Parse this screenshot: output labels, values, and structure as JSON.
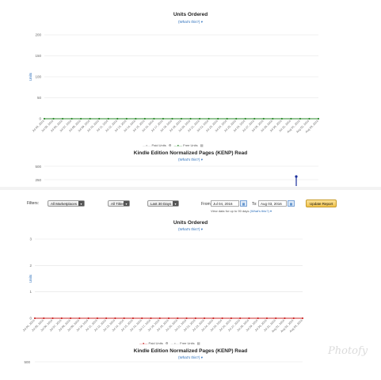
{
  "top": {
    "units_title": "Units Ordered",
    "whats_this": "(What's this?)",
    "legend": {
      "paid": "Paid Units",
      "free": "Free Units"
    },
    "kenp_title": "Kindle Edition Normalized Pages (KENP) Read",
    "kenp_whats_this": "(What's this?)",
    "kenp_ticks": [
      "500",
      "250"
    ]
  },
  "filters": {
    "label": "Filters:",
    "marketplace": "All Marketplaces",
    "titles": "All Titles",
    "range": "Last 30 Days",
    "from_label": "From:",
    "from_value": "Jul 04, 2016",
    "to_label": "To:",
    "to_value": "Aug 03, 2016",
    "update": "Update Report",
    "hint": "View data for up to 90 days",
    "hint_link": "(What's this?)"
  },
  "bottom": {
    "units_title": "Units Ordered",
    "whats_this": "(What's this?)",
    "legend": {
      "paid": "Paid Units",
      "free": "Free Units"
    },
    "kenp_title": "Kindle Edition Normalized Pages (KENP) Read",
    "kenp_whats_this": "(What's this?)",
    "kenp_tick": "500"
  },
  "watermark": "Photofy",
  "chart_data": [
    {
      "type": "line",
      "title": "Units Ordered",
      "ylabel": "Units",
      "ylim": [
        0,
        200
      ],
      "yticks": [
        0,
        50,
        100,
        150,
        200
      ],
      "categories": [
        "Jul 04, 2016",
        "Jul 05, 2016",
        "Jul 06, 2016",
        "Jul 07, 2016",
        "Jul 08, 2016",
        "Jul 09, 2016",
        "Jul 10, 2016",
        "Jul 11, 2016",
        "Jul 12, 2016",
        "Jul 13, 2016",
        "Jul 14, 2016",
        "Jul 15, 2016",
        "Jul 16, 2016",
        "Jul 17, 2016",
        "Jul 18, 2016",
        "Jul 19, 2016",
        "Jul 20, 2016",
        "Jul 21, 2016",
        "Jul 22, 2016",
        "Jul 23, 2016",
        "Jul 24, 2016",
        "Jul 25, 2016",
        "Jul 26, 2016",
        "Jul 27, 2016",
        "Jul 28, 2016",
        "Jul 29, 2016",
        "Jul 30, 2016",
        "Jul 31, 2016",
        "Aug 01, 2016",
        "Aug 02, 2016",
        "Aug 03, 2016"
      ],
      "series": [
        {
          "name": "Free Units",
          "color": "#2e8b2e",
          "values": [
            0,
            0,
            0,
            0,
            0,
            0,
            0,
            0,
            0,
            0,
            0,
            0,
            0,
            0,
            0,
            0,
            0,
            0,
            0,
            0,
            0,
            0,
            0,
            0,
            0,
            0,
            0,
            0,
            0,
            0,
            0
          ]
        },
        {
          "name": "Paid Units",
          "color": "#bbbbbb",
          "values": [
            0,
            0,
            0,
            0,
            0,
            0,
            0,
            0,
            0,
            0,
            0,
            0,
            0,
            0,
            0,
            0,
            0,
            0,
            0,
            0,
            0,
            0,
            0,
            0,
            0,
            0,
            0,
            0,
            0,
            0,
            0
          ]
        }
      ],
      "grid": true,
      "legend_position": "bottom"
    },
    {
      "type": "line",
      "title": "Units Ordered",
      "ylabel": "Units",
      "ylim": [
        0,
        3
      ],
      "yticks": [
        0,
        1,
        2,
        3
      ],
      "categories": [
        "Jul 04, 2016",
        "Jul 05, 2016",
        "Jul 06, 2016",
        "Jul 07, 2016",
        "Jul 08, 2016",
        "Jul 09, 2016",
        "Jul 10, 2016",
        "Jul 11, 2016",
        "Jul 12, 2016",
        "Jul 13, 2016",
        "Jul 14, 2016",
        "Jul 15, 2016",
        "Jul 16, 2016",
        "Jul 17, 2016",
        "Jul 18, 2016",
        "Jul 19, 2016",
        "Jul 20, 2016",
        "Jul 21, 2016",
        "Jul 22, 2016",
        "Jul 23, 2016",
        "Jul 24, 2016",
        "Jul 25, 2016",
        "Jul 26, 2016",
        "Jul 27, 2016",
        "Jul 28, 2016",
        "Jul 29, 2016",
        "Jul 30, 2016",
        "Jul 31, 2016",
        "Aug 01, 2016",
        "Aug 02, 2016",
        "Aug 03, 2016"
      ],
      "series": [
        {
          "name": "Paid Units",
          "color": "#cc2b2b",
          "values": [
            0,
            0,
            0,
            0,
            0,
            0,
            0,
            0,
            0,
            0,
            0,
            0,
            0,
            0,
            0,
            0,
            0,
            0,
            0,
            0,
            0,
            0,
            0,
            0,
            0,
            0,
            0,
            0,
            0,
            0,
            0
          ]
        },
        {
          "name": "Free Units",
          "color": "#bbbbbb",
          "values": [
            0,
            0,
            0,
            0,
            0,
            0,
            0,
            0,
            0,
            0,
            0,
            0,
            0,
            0,
            0,
            0,
            0,
            0,
            0,
            0,
            0,
            0,
            0,
            0,
            0,
            0,
            0,
            0,
            0,
            0,
            0
          ]
        }
      ],
      "grid": true,
      "legend_position": "bottom"
    }
  ]
}
